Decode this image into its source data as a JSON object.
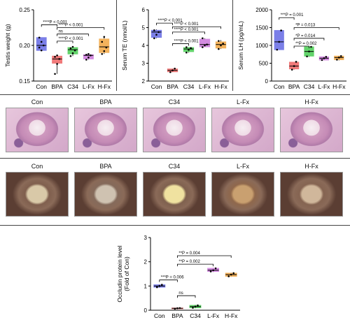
{
  "colors": {
    "Con": "#7b7fe8",
    "BPA": "#f07a7a",
    "C34": "#63d46b",
    "L-Fx": "#d38be0",
    "H-Fx": "#f3b25c"
  },
  "chart_data": [
    {
      "type": "box",
      "ylabel": "Testis weight (g)",
      "ylim": [
        0.15,
        0.25
      ],
      "yticks": [
        "0.15",
        "0.20",
        "0.25"
      ],
      "ytick_values": [
        0.15,
        0.2,
        0.25
      ],
      "categories": [
        "Con",
        "BPA",
        "C34",
        "L-Fx",
        "H-Fx"
      ],
      "boxes": [
        {
          "min": 0.193,
          "q1": 0.193,
          "median": 0.2,
          "q3": 0.211,
          "max": 0.211,
          "points": [
            0.211,
            0.205,
            0.2,
            0.197,
            0.193
          ]
        },
        {
          "min": 0.16,
          "q1": 0.175,
          "median": 0.181,
          "q3": 0.185,
          "max": 0.186,
          "points": [
            0.16,
            0.174,
            0.181,
            0.184,
            0.186
          ]
        },
        {
          "min": 0.185,
          "q1": 0.188,
          "median": 0.194,
          "q3": 0.197,
          "max": 0.198,
          "points": [
            0.185,
            0.189,
            0.193,
            0.196,
            0.198
          ]
        },
        {
          "min": 0.18,
          "q1": 0.181,
          "median": 0.186,
          "q3": 0.187,
          "max": 0.188,
          "points": [
            0.18,
            0.183,
            0.186,
            0.187,
            0.188
          ]
        },
        {
          "min": 0.188,
          "q1": 0.19,
          "median": 0.198,
          "q3": 0.209,
          "max": 0.212,
          "points": [
            0.188,
            0.192,
            0.197,
            0.205,
            0.212
          ]
        }
      ],
      "brackets": [
        {
          "from": 0,
          "to": 1,
          "y": 0.229,
          "label": "****P < 0.001"
        },
        {
          "from": 1,
          "to": 4,
          "y": 0.225,
          "label": "****P < 0.001"
        },
        {
          "from": 1,
          "to": 3,
          "y": 0.216,
          "label": "ns"
        },
        {
          "from": 1,
          "to": 2,
          "y": 0.206,
          "label": "****P < 0.001"
        }
      ]
    },
    {
      "type": "box",
      "ylabel": "Serum TE (nmol/L)",
      "ylim": [
        2,
        6
      ],
      "yticks": [
        "2",
        "3",
        "4",
        "5",
        "6"
      ],
      "ytick_values": [
        2,
        3,
        4,
        5,
        6
      ],
      "categories": [
        "Con",
        "BPA",
        "C34",
        "L-Fx",
        "H-Fx"
      ],
      "boxes": [
        {
          "min": 4.4,
          "q1": 4.45,
          "median": 4.75,
          "q3": 4.85,
          "max": 4.9,
          "points": [
            4.4,
            4.6,
            4.75,
            4.85
          ]
        },
        {
          "min": 2.5,
          "q1": 2.52,
          "median": 2.6,
          "q3": 2.68,
          "max": 2.7,
          "points": [
            2.5,
            2.6,
            2.7
          ]
        },
        {
          "min": 3.6,
          "q1": 3.65,
          "median": 3.8,
          "q3": 3.88,
          "max": 3.9,
          "points": [
            3.6,
            3.75,
            3.85,
            3.9
          ]
        },
        {
          "min": 3.9,
          "q1": 3.92,
          "median": 4.05,
          "q3": 4.35,
          "max": 4.4,
          "points": [
            3.9,
            4.0,
            4.05,
            4.4
          ]
        },
        {
          "min": 3.8,
          "q1": 3.85,
          "median": 4.05,
          "q3": 4.2,
          "max": 4.3,
          "points": [
            3.8,
            4.0,
            4.1,
            4.25
          ]
        }
      ],
      "brackets": [
        {
          "from": 0,
          "to": 1,
          "y": 5.25,
          "label": "****P < 0.001"
        },
        {
          "from": 1,
          "to": 4,
          "y": 5.05,
          "label": "****P < 0.001"
        },
        {
          "from": 1,
          "to": 3,
          "y": 4.75,
          "label": "****P < 0.001"
        },
        {
          "from": 1,
          "to": 2,
          "y": 4.1,
          "label": "****P < 0.001"
        }
      ]
    },
    {
      "type": "box",
      "ylabel": "Serum LH (pg/mL)",
      "ylim": [
        0,
        2000
      ],
      "yticks": [
        "0",
        "500",
        "1000",
        "1500",
        "2000"
      ],
      "ytick_values": [
        0,
        500,
        1000,
        1500,
        2000
      ],
      "categories": [
        "Con",
        "BPA",
        "C34",
        "L-Fx",
        "H-Fx"
      ],
      "boxes": [
        {
          "min": 880,
          "q1": 880,
          "median": 1100,
          "q3": 1420,
          "max": 1420,
          "points": [
            880,
            1100,
            1420
          ]
        },
        {
          "min": 320,
          "q1": 340,
          "median": 420,
          "q3": 530,
          "max": 540,
          "points": [
            320,
            420,
            540
          ]
        },
        {
          "min": 680,
          "q1": 700,
          "median": 830,
          "q3": 960,
          "max": 980,
          "points": [
            690,
            830,
            960
          ]
        },
        {
          "min": 580,
          "q1": 590,
          "median": 640,
          "q3": 680,
          "max": 690,
          "points": [
            590,
            640,
            680
          ]
        },
        {
          "min": 580,
          "q1": 600,
          "median": 660,
          "q3": 700,
          "max": 710,
          "points": [
            600,
            660,
            700
          ]
        }
      ],
      "brackets": [
        {
          "from": 0,
          "to": 1,
          "y": 1780,
          "label": "***P = 0.001"
        },
        {
          "from": 1,
          "to": 4,
          "y": 1500,
          "label": "*P = 0.013"
        },
        {
          "from": 1,
          "to": 3,
          "y": 1200,
          "label": "*P = 0.014"
        },
        {
          "from": 1,
          "to": 2,
          "y": 980,
          "label": "**P = 0.002"
        }
      ]
    },
    {
      "type": "box",
      "ylabel": "Occludin protein level",
      "ylabel2": "(Fold of Con)",
      "ylim": [
        0,
        3
      ],
      "yticks": [
        "0",
        "1",
        "2",
        "3"
      ],
      "ytick_values": [
        0,
        1,
        2,
        3
      ],
      "categories": [
        "Con",
        "BPA",
        "C34",
        "L-Fx",
        "H-Fx"
      ],
      "boxes": [
        {
          "min": 0.93,
          "q1": 0.95,
          "median": 1.0,
          "q3": 1.05,
          "max": 1.07,
          "points": [
            0.95,
            1.0,
            1.05
          ]
        },
        {
          "min": 0.05,
          "q1": 0.06,
          "median": 0.08,
          "q3": 0.09,
          "max": 0.1,
          "points": [
            0.06,
            0.08,
            0.09
          ]
        },
        {
          "min": 0.08,
          "q1": 0.1,
          "median": 0.15,
          "q3": 0.2,
          "max": 0.22,
          "points": [
            0.1,
            0.15,
            0.2
          ]
        },
        {
          "min": 1.58,
          "q1": 1.6,
          "median": 1.65,
          "q3": 1.73,
          "max": 1.75,
          "points": [
            1.6,
            1.65,
            1.73
          ]
        },
        {
          "min": 1.38,
          "q1": 1.4,
          "median": 1.47,
          "q3": 1.53,
          "max": 1.55,
          "points": [
            1.4,
            1.47,
            1.53
          ]
        }
      ],
      "brackets": [
        {
          "from": 1,
          "to": 4,
          "y": 2.25,
          "label": "**P = 0.004"
        },
        {
          "from": 1,
          "to": 3,
          "y": 1.9,
          "label": "**P = 0.002"
        },
        {
          "from": 0,
          "to": 1,
          "y": 1.25,
          "label": "***P = 0.006"
        },
        {
          "from": 1,
          "to": 2,
          "y": 0.6,
          "label": "ns"
        }
      ]
    }
  ],
  "histology": {
    "he_labels": [
      "Con",
      "BPA",
      "C34",
      "L-Fx",
      "H-Fx"
    ],
    "ihc_labels": [
      "Con",
      "BPA",
      "C34",
      "L-Fx",
      "H-Fx"
    ]
  }
}
